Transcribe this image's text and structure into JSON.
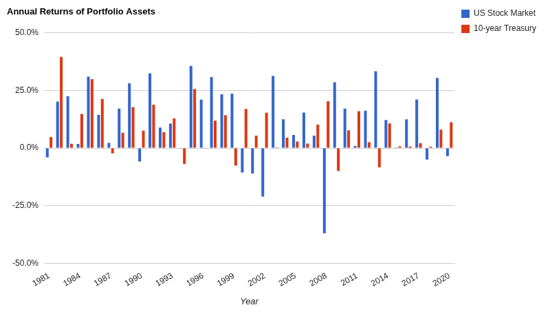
{
  "chart_data": {
    "type": "bar",
    "title": "Annual Returns of Portfolio Assets",
    "x_label": "Year",
    "categories": [
      "1981",
      null,
      null,
      "1984",
      null,
      null,
      "1987",
      null,
      null,
      "1990",
      null,
      null,
      "1993",
      null,
      null,
      "1996",
      null,
      null,
      "1999",
      null,
      null,
      "2002",
      null,
      null,
      "2005",
      null,
      null,
      "2008",
      null,
      null,
      "2011",
      null,
      null,
      "2014",
      null,
      null,
      "2017",
      null,
      null,
      "2020"
    ],
    "series": [
      {
        "name": "US Stock Market",
        "color": "#3366cc",
        "values": [
          -4.0,
          20.2,
          22.5,
          1.8,
          31.0,
          14.4,
          2.3,
          17.1,
          28.1,
          -5.8,
          32.4,
          8.9,
          10.6,
          -0.2,
          35.6,
          21.0,
          30.8,
          23.3,
          23.6,
          -10.6,
          -11.0,
          -21.0,
          31.3,
          12.5,
          5.7,
          15.4,
          5.4,
          -36.9,
          28.5,
          17.1,
          0.9,
          16.2,
          33.3,
          12.2,
          0.3,
          12.5,
          21.1,
          -5.0,
          30.4,
          -3.5
        ]
      },
      {
        "name": "10-year Treasury",
        "color": "#dc3912",
        "values": [
          4.8,
          39.5,
          1.9,
          14.8,
          29.9,
          21.3,
          -2.3,
          6.7,
          17.8,
          7.6,
          18.8,
          6.9,
          12.9,
          -6.9,
          25.6,
          0.1,
          11.9,
          14.3,
          -7.6,
          17.0,
          5.4,
          15.3,
          0.3,
          4.5,
          2.9,
          2.0,
          10.2,
          20.3,
          -9.9,
          7.7,
          16.0,
          2.6,
          -8.3,
          10.7,
          0.8,
          0.7,
          2.1,
          0.6,
          8.0,
          11.2
        ]
      }
    ],
    "ylim": [
      -50,
      50
    ],
    "yticks": [
      {
        "value": -50,
        "label": "-50.0%"
      },
      {
        "value": -25,
        "label": "-25.0%"
      },
      {
        "value": 0,
        "label": "0.0%"
      },
      {
        "value": 25,
        "label": "25.0%"
      },
      {
        "value": 50,
        "label": "50.0%"
      }
    ],
    "grid": true,
    "legend": "right"
  }
}
